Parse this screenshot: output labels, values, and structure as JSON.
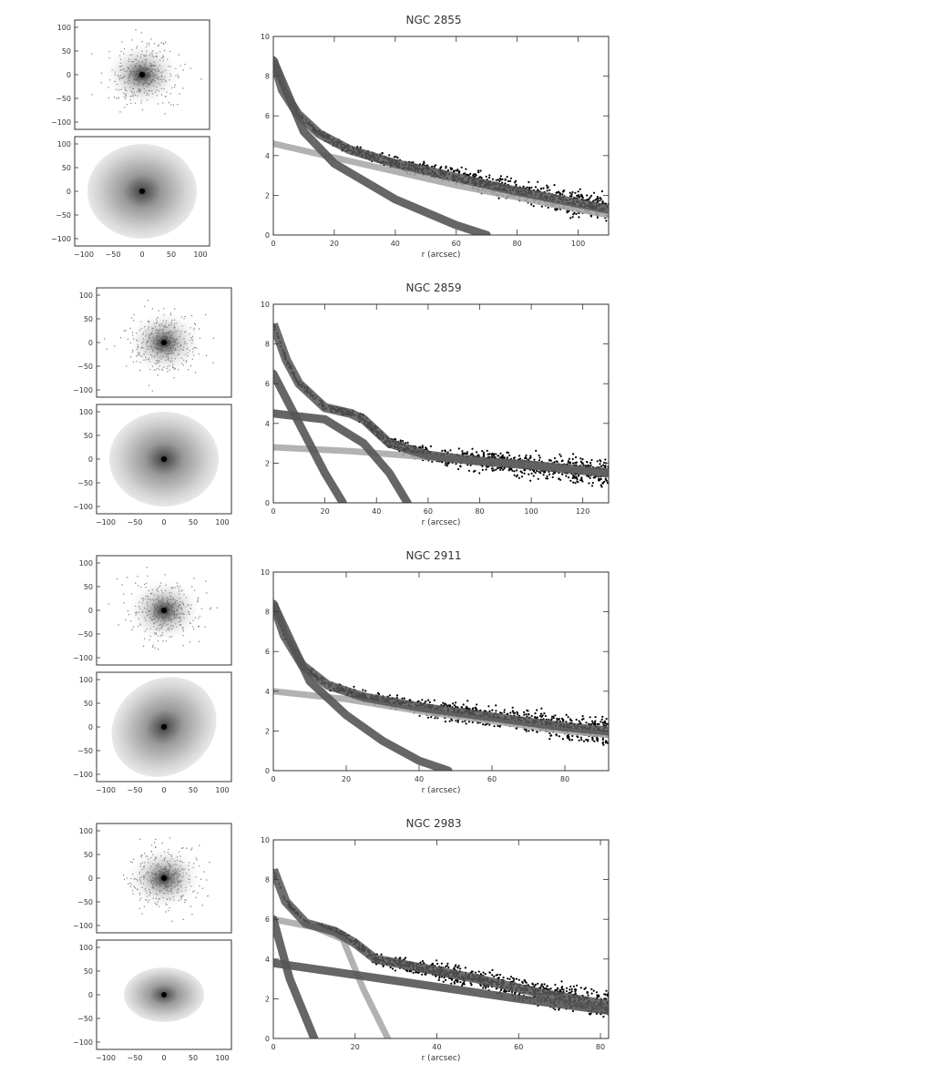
{
  "colors": {
    "ink": "#000000",
    "frame": "#333333",
    "band_dark": "#555555",
    "band_light": "#aaaaaa",
    "points": "#000000"
  },
  "chart_data": [
    {
      "type": "scatter",
      "title": "NGC 2855",
      "xlabel": "r (arcsec)",
      "ylabel": "",
      "xlim": [
        0,
        110
      ],
      "ylim": [
        10,
        0
      ],
      "xticks": [
        "0",
        "20",
        "40",
        "60",
        "80",
        "100"
      ],
      "yticks": [
        "10",
        "8",
        "6",
        "4",
        "2",
        "0"
      ],
      "image_ticks": [
        "100",
        "50",
        "0",
        "−50",
        "−100"
      ],
      "image_xticks": [
        "−100",
        "−50",
        "0",
        "50",
        "100"
      ],
      "total_model": {
        "x": [
          0,
          3,
          8,
          15,
          25,
          40,
          60,
          80,
          100,
          110
        ],
        "y": [
          8.8,
          7.3,
          6.1,
          5.1,
          4.3,
          3.6,
          2.9,
          2.2,
          1.6,
          1.3
        ]
      },
      "components": [
        {
          "x": [
            0,
            20,
            40,
            60,
            80,
            100,
            110
          ],
          "y": [
            4.6,
            3.9,
            3.2,
            2.5,
            1.9,
            1.3,
            1.0
          ]
        },
        {
          "x": [
            0,
            10,
            20,
            40,
            60,
            70
          ],
          "y": [
            8.8,
            5.2,
            3.6,
            1.8,
            0.5,
            0.0
          ]
        }
      ]
    },
    {
      "type": "scatter",
      "title": "NGC 2859",
      "xlabel": "r (arcsec)",
      "ylabel": "",
      "xlim": [
        0,
        130
      ],
      "ylim": [
        10,
        0
      ],
      "xticks": [
        "0",
        "20",
        "40",
        "60",
        "80",
        "100",
        "120"
      ],
      "yticks": [
        "10",
        "8",
        "6",
        "4",
        "2",
        "0"
      ],
      "image_ticks": [
        "100",
        "50",
        "0",
        "−50",
        "−100"
      ],
      "image_xticks": [
        "−100",
        "−50",
        "0",
        "50",
        "100"
      ],
      "total_model": {
        "x": [
          0,
          5,
          10,
          20,
          30,
          35,
          45,
          60,
          80,
          100,
          130
        ],
        "y": [
          9.0,
          7.2,
          6.0,
          4.8,
          4.5,
          4.2,
          3.0,
          2.4,
          2.1,
          1.9,
          1.5
        ]
      },
      "components": [
        {
          "x": [
            0,
            30,
            60,
            100,
            130
          ],
          "y": [
            2.8,
            2.6,
            2.3,
            1.9,
            1.5
          ]
        },
        {
          "x": [
            0,
            20,
            35,
            45,
            52
          ],
          "y": [
            4.5,
            4.2,
            3.0,
            1.5,
            0.0
          ]
        },
        {
          "x": [
            0,
            10,
            20,
            27
          ],
          "y": [
            6.5,
            4.0,
            1.5,
            0.0
          ]
        }
      ]
    },
    {
      "type": "scatter",
      "title": "NGC 2911",
      "xlabel": "r (arcsec)",
      "ylabel": "",
      "xlim": [
        0,
        92
      ],
      "ylim": [
        10,
        0
      ],
      "xticks": [
        "0",
        "20",
        "40",
        "60",
        "80"
      ],
      "yticks": [
        "10",
        "8",
        "6",
        "4",
        "2",
        "0"
      ],
      "image_ticks": [
        "100",
        "50",
        "0",
        "−50",
        "−100"
      ],
      "image_xticks": [
        "−100",
        "−50",
        "0",
        "50",
        "100"
      ],
      "total_model": {
        "x": [
          0,
          3,
          8,
          15,
          25,
          40,
          60,
          80,
          92
        ],
        "y": [
          8.4,
          6.8,
          5.3,
          4.3,
          3.7,
          3.2,
          2.7,
          2.2,
          2.0
        ]
      },
      "components": [
        {
          "x": [
            0,
            20,
            40,
            60,
            80,
            92
          ],
          "y": [
            4.0,
            3.6,
            3.0,
            2.5,
            2.0,
            1.8
          ]
        },
        {
          "x": [
            0,
            10,
            20,
            30,
            40,
            48
          ],
          "y": [
            8.4,
            4.5,
            2.8,
            1.5,
            0.5,
            0.0
          ]
        }
      ]
    },
    {
      "type": "scatter",
      "title": "NGC 2983",
      "xlabel": "r (arcsec)",
      "ylabel": "",
      "xlim": [
        0,
        82
      ],
      "ylim": [
        10,
        0
      ],
      "xticks": [
        "0",
        "20",
        "40",
        "60",
        "80"
      ],
      "yticks": [
        "10",
        "8",
        "6",
        "4",
        "2",
        "0"
      ],
      "image_ticks": [
        "100",
        "50",
        "0",
        "−50",
        "−100"
      ],
      "image_xticks": [
        "−100",
        "−50",
        "0",
        "50",
        "100"
      ],
      "total_model": {
        "x": [
          0,
          3,
          8,
          15,
          20,
          25,
          35,
          50,
          65,
          82
        ],
        "y": [
          8.5,
          6.9,
          5.8,
          5.4,
          4.8,
          4.0,
          3.6,
          3.0,
          2.3,
          1.7
        ]
      },
      "components": [
        {
          "x": [
            0,
            10,
            17,
            22,
            28
          ],
          "y": [
            6.0,
            5.6,
            5.0,
            2.5,
            0.0
          ]
        },
        {
          "x": [
            0,
            4,
            8,
            10
          ],
          "y": [
            6.0,
            3.0,
            1.0,
            0.0
          ]
        },
        {
          "x": [
            0,
            20,
            40,
            60,
            82
          ],
          "y": [
            3.8,
            3.2,
            2.6,
            2.0,
            1.4
          ]
        }
      ]
    }
  ]
}
